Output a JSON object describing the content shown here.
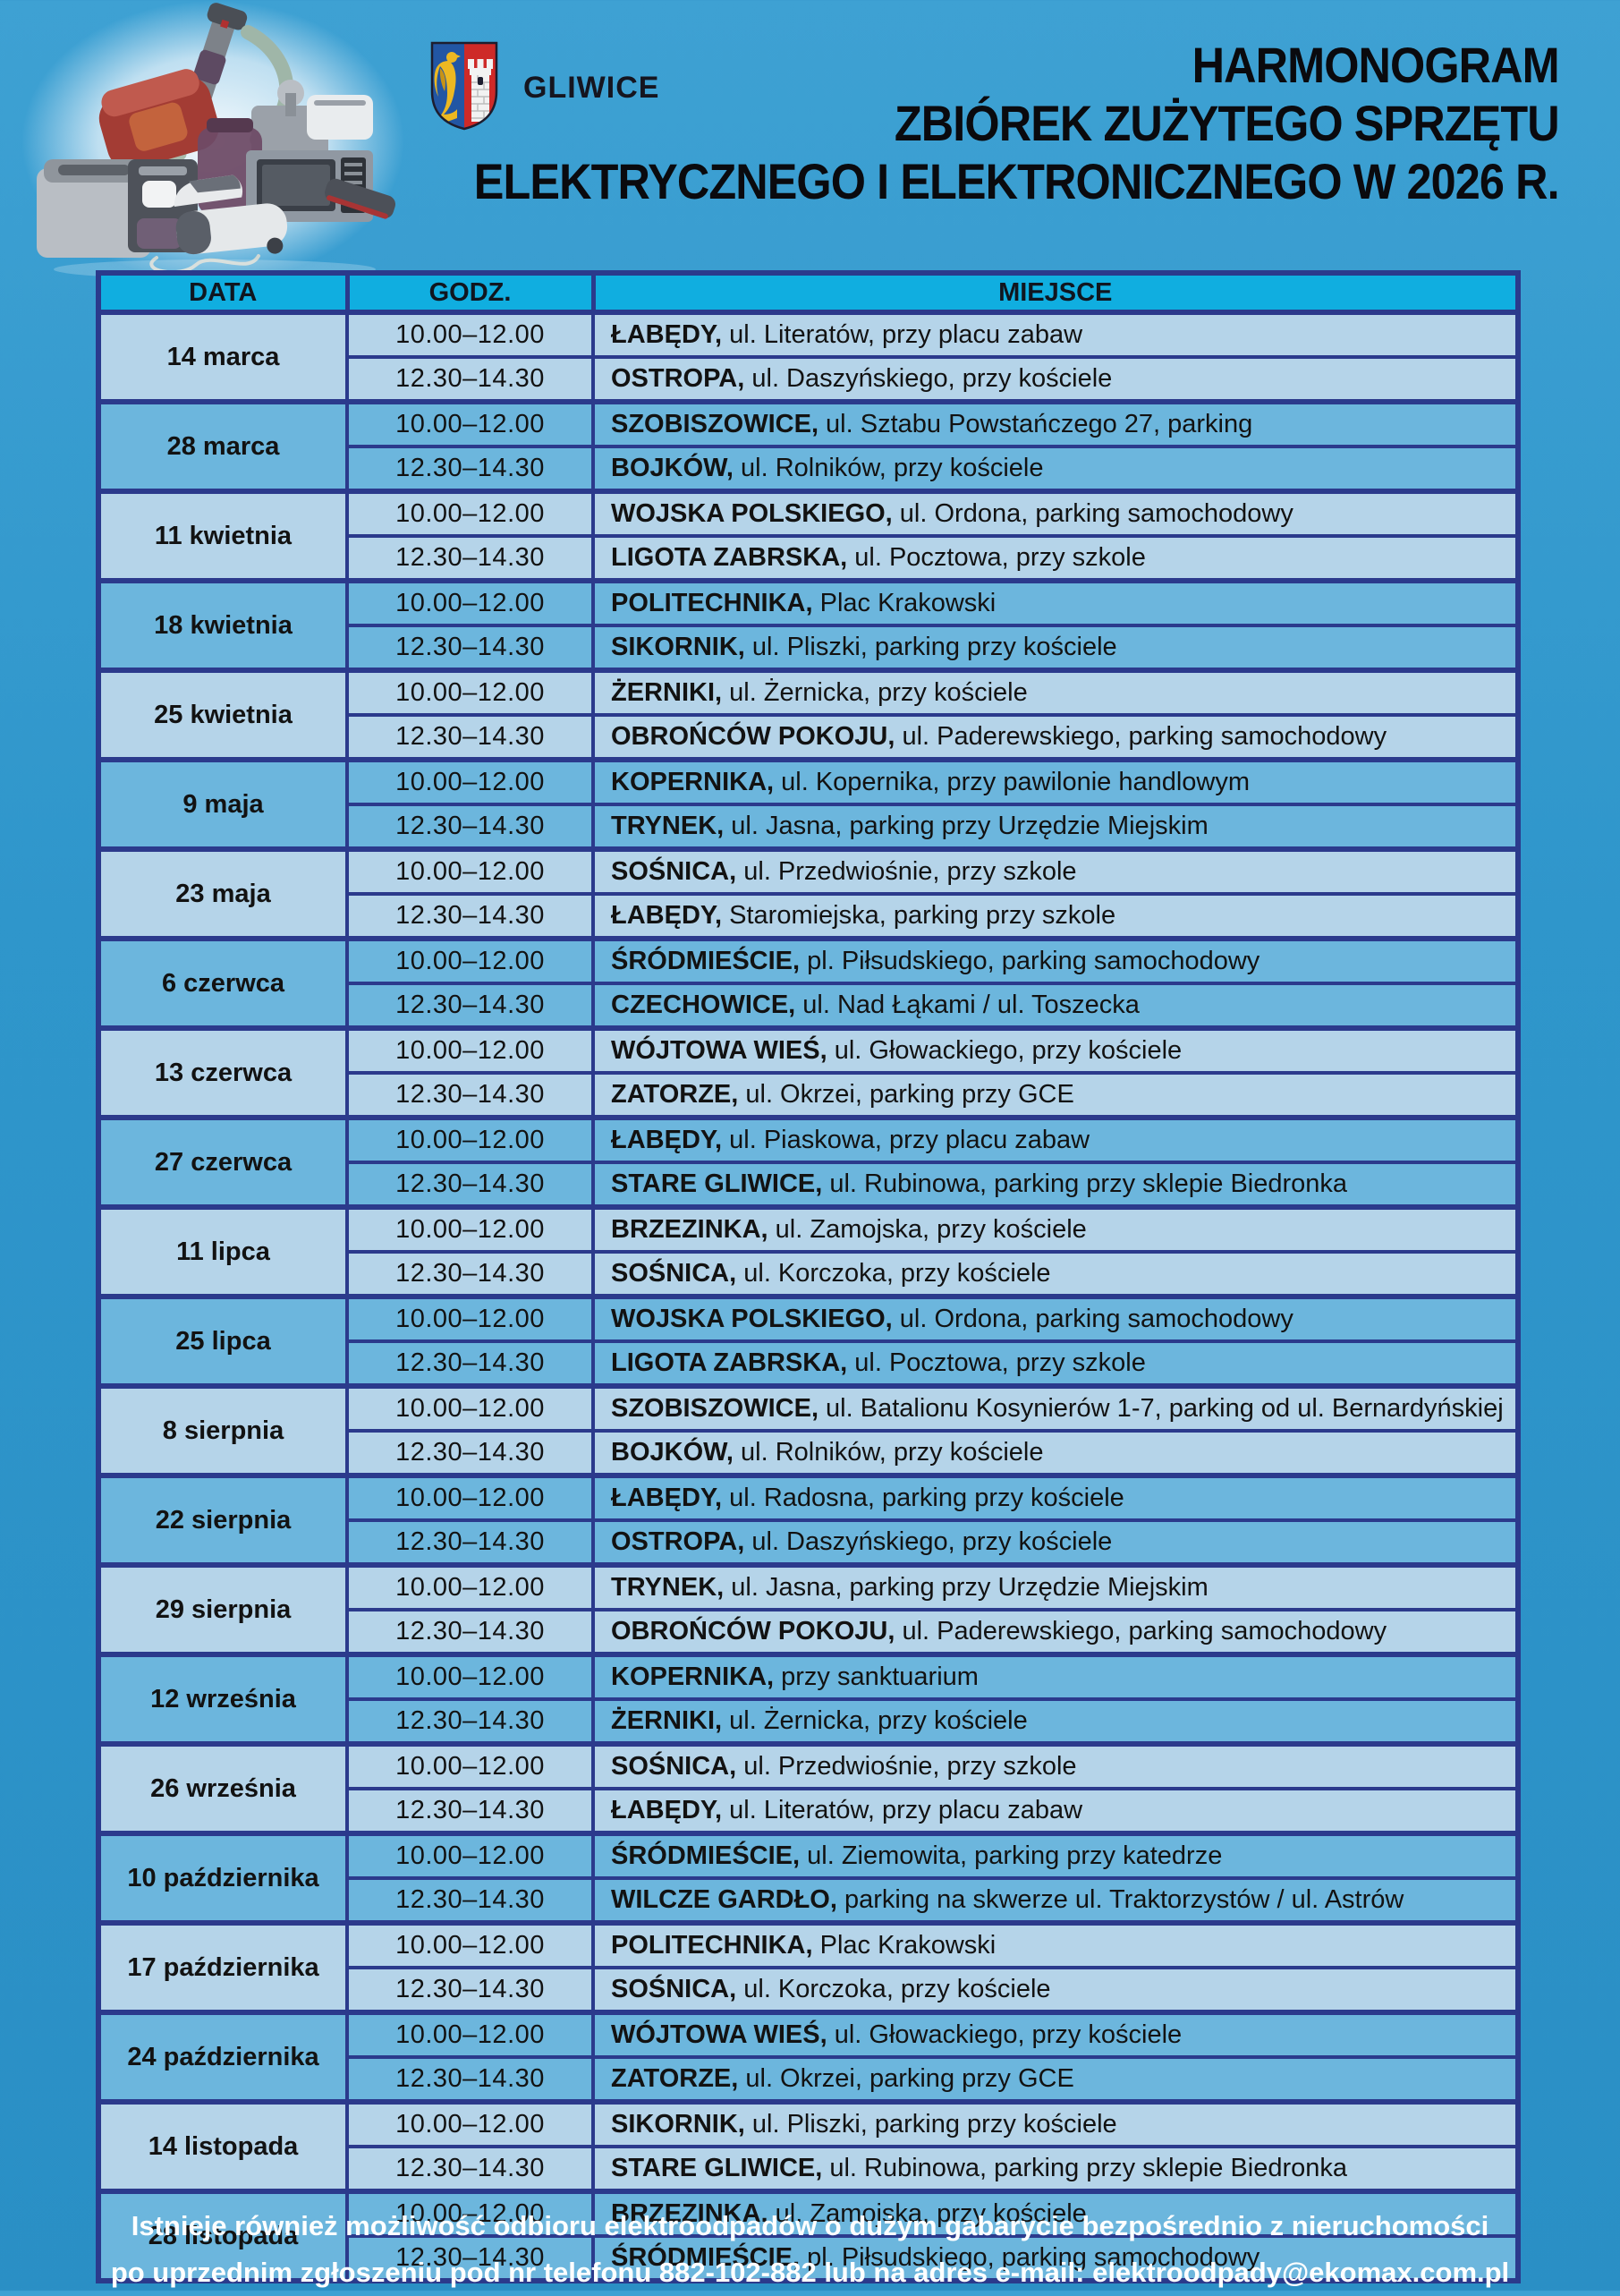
{
  "page": {
    "background_top": "#3ea1d3",
    "background_bottom": "#2a8fc5"
  },
  "header": {
    "logo_text": "GLIWICE",
    "coat_of_arms_icon": "gliwice-coat-of-arms",
    "appliances_image": "pile-of-used-electronics",
    "title_lines": [
      "HARMONOGRAM",
      "ZBIÓREK ZUŻYTEGO SPRZĘTU",
      "ELEKTRYCZNEGO I ELEKTRONICZNEGO W 2026 R."
    ]
  },
  "schedule": {
    "headers": [
      "DATA",
      "GODZ.",
      "MIEJSCE"
    ],
    "groups": [
      {
        "date": "14 marca",
        "rows": [
          {
            "time": "10.00–12.00",
            "place": "ŁABĘDY",
            "details": "ul. Literatów, przy placu zabaw"
          },
          {
            "time": "12.30–14.30",
            "place": "OSTROPA",
            "details": "ul. Daszyńskiego, przy kościele"
          }
        ]
      },
      {
        "date": "28 marca",
        "rows": [
          {
            "time": "10.00–12.00",
            "place": "SZOBISZOWICE",
            "details": "ul. Sztabu Powstańczego 27, parking"
          },
          {
            "time": "12.30–14.30",
            "place": "BOJKÓW",
            "details": "ul. Rolników, przy kościele"
          }
        ]
      },
      {
        "date": "11 kwietnia",
        "rows": [
          {
            "time": "10.00–12.00",
            "place": "WOJSKA POLSKIEGO",
            "details": "ul. Ordona, parking samochodowy"
          },
          {
            "time": "12.30–14.30",
            "place": "LIGOTA ZABRSKA",
            "details": "ul. Pocztowa, przy szkole"
          }
        ]
      },
      {
        "date": "18 kwietnia",
        "rows": [
          {
            "time": "10.00–12.00",
            "place": "POLITECHNIKA",
            "details": "Plac Krakowski"
          },
          {
            "time": "12.30–14.30",
            "place": "SIKORNIK",
            "details": "ul. Pliszki, parking przy kościele"
          }
        ]
      },
      {
        "date": "25 kwietnia",
        "rows": [
          {
            "time": "10.00–12.00",
            "place": "ŻERNIKI",
            "details": "ul. Żernicka, przy kościele"
          },
          {
            "time": "12.30–14.30",
            "place": "OBROŃCÓW POKOJU",
            "details": "ul. Paderewskiego, parking samochodowy"
          }
        ]
      },
      {
        "date": "9 maja",
        "rows": [
          {
            "time": "10.00–12.00",
            "place": "KOPERNIKA",
            "details": "ul. Kopernika, przy pawilonie handlowym"
          },
          {
            "time": "12.30–14.30",
            "place": "TRYNEK",
            "details": "ul. Jasna, parking przy Urzędzie Miejskim"
          }
        ]
      },
      {
        "date": "23 maja",
        "rows": [
          {
            "time": "10.00–12.00",
            "place": "SOŚNICA",
            "details": "ul. Przedwiośnie, przy szkole"
          },
          {
            "time": "12.30–14.30",
            "place": "ŁABĘDY",
            "details": "Staromiejska, parking przy szkole"
          }
        ]
      },
      {
        "date": "6 czerwca",
        "rows": [
          {
            "time": "10.00–12.00",
            "place": "ŚRÓDMIEŚCIE",
            "details": "pl. Piłsudskiego, parking samochodowy"
          },
          {
            "time": "12.30–14.30",
            "place": "CZECHOWICE",
            "details": "ul. Nad Łąkami / ul. Toszecka"
          }
        ]
      },
      {
        "date": "13 czerwca",
        "rows": [
          {
            "time": "10.00–12.00",
            "place": "WÓJTOWA WIEŚ",
            "details": "ul. Głowackiego, przy kościele"
          },
          {
            "time": "12.30–14.30",
            "place": "ZATORZE",
            "details": "ul. Okrzei, parking przy GCE"
          }
        ]
      },
      {
        "date": "27 czerwca",
        "rows": [
          {
            "time": "10.00–12.00",
            "place": "ŁABĘDY",
            "details": "ul. Piaskowa, przy placu zabaw"
          },
          {
            "time": "12.30–14.30",
            "place": "STARE GLIWICE",
            "details": "ul. Rubinowa, parking przy sklepie Biedronka"
          }
        ]
      },
      {
        "date": "11 lipca",
        "rows": [
          {
            "time": "10.00–12.00",
            "place": "BRZEZINKA",
            "details": "ul. Zamojska, przy kościele"
          },
          {
            "time": "12.30–14.30",
            "place": "SOŚNICA",
            "details": "ul. Korczoka, przy kościele"
          }
        ]
      },
      {
        "date": "25 lipca",
        "rows": [
          {
            "time": "10.00–12.00",
            "place": "WOJSKA POLSKIEGO",
            "details": "ul. Ordona, parking samochodowy"
          },
          {
            "time": "12.30–14.30",
            "place": "LIGOTA ZABRSKA",
            "details": "ul. Pocztowa, przy szkole"
          }
        ]
      },
      {
        "date": "8 sierpnia",
        "rows": [
          {
            "time": "10.00–12.00",
            "place": "SZOBISZOWICE",
            "details": "ul. Batalionu Kosynierów 1-7, parking od ul. Bernardyńskiej"
          },
          {
            "time": "12.30–14.30",
            "place": "BOJKÓW",
            "details": "ul. Rolników, przy kościele"
          }
        ]
      },
      {
        "date": "22 sierpnia",
        "rows": [
          {
            "time": "10.00–12.00",
            "place": "ŁABĘDY",
            "details": "ul. Radosna, parking przy kościele"
          },
          {
            "time": "12.30–14.30",
            "place": "OSTROPA",
            "details": "ul. Daszyńskiego, przy kościele"
          }
        ]
      },
      {
        "date": "29 sierpnia",
        "rows": [
          {
            "time": "10.00–12.00",
            "place": "TRYNEK",
            "details": "ul. Jasna, parking przy Urzędzie Miejskim"
          },
          {
            "time": "12.30–14.30",
            "place": "OBROŃCÓW POKOJU",
            "details": "ul. Paderewskiego, parking samochodowy"
          }
        ]
      },
      {
        "date": "12 września",
        "rows": [
          {
            "time": "10.00–12.00",
            "place": "KOPERNIKA",
            "details": "przy sanktuarium"
          },
          {
            "time": "12.30–14.30",
            "place": "ŻERNIKI",
            "details": "ul. Żernicka, przy kościele"
          }
        ]
      },
      {
        "date": "26 września",
        "rows": [
          {
            "time": "10.00–12.00",
            "place": "SOŚNICA",
            "details": "ul. Przedwiośnie, przy szkole"
          },
          {
            "time": "12.30–14.30",
            "place": "ŁABĘDY",
            "details": "ul. Literatów, przy placu zabaw"
          }
        ]
      },
      {
        "date": "10 października",
        "rows": [
          {
            "time": "10.00–12.00",
            "place": "ŚRÓDMIEŚCIE",
            "details": "ul. Ziemowita, parking przy katedrze"
          },
          {
            "time": "12.30–14.30",
            "place": "WILCZE GARDŁO",
            "details": "parking na skwerze ul. Traktorzystów / ul. Astrów"
          }
        ]
      },
      {
        "date": "17 października",
        "rows": [
          {
            "time": "10.00–12.00",
            "place": "POLITECHNIKA",
            "details": "Plac Krakowski"
          },
          {
            "time": "12.30–14.30",
            "place": "SOŚNICA",
            "details": "ul. Korczoka, przy kościele"
          }
        ]
      },
      {
        "date": "24 października",
        "rows": [
          {
            "time": "10.00–12.00",
            "place": "WÓJTOWA WIEŚ",
            "details": "ul. Głowackiego, przy kościele"
          },
          {
            "time": "12.30–14.30",
            "place": "ZATORZE",
            "details": "ul. Okrzei, parking przy GCE"
          }
        ]
      },
      {
        "date": "14 listopada",
        "rows": [
          {
            "time": "10.00–12.00",
            "place": "SIKORNIK",
            "details": "ul. Pliszki, parking przy kościele"
          },
          {
            "time": "12.30–14.30",
            "place": "STARE GLIWICE",
            "details": "ul. Rubinowa, parking przy sklepie Biedronka"
          }
        ]
      },
      {
        "date": "28 listopada",
        "rows": [
          {
            "time": "10.00–12.00",
            "place": "BRZEZINKA",
            "details": "ul. Zamojska, przy kościele"
          },
          {
            "time": "12.30–14.30",
            "place": "ŚRÓDMIEŚCIE",
            "details": "pl. Piłsudskiego, parking samochodowy"
          }
        ]
      }
    ]
  },
  "footer": {
    "line1": "Istnieje również możliwość odbioru elektroodpadów o dużym gabarycie bezpośrednio z nieruchomości",
    "line2": "po uprzednim zgłoszeniu pod  nr telefonu 882-102-882 lub na adres e-mail: elektroodpady@ekomax.com.pl"
  },
  "colors": {
    "header_row_bg": "#10aee0",
    "row_light_bg": "#b5d4e9",
    "row_dark_bg": "#6cb6dd",
    "table_border": "#2b3a8c",
    "body_text": "#121212",
    "title_text": "#0a0a0e",
    "footer_text": "#ffffff"
  }
}
